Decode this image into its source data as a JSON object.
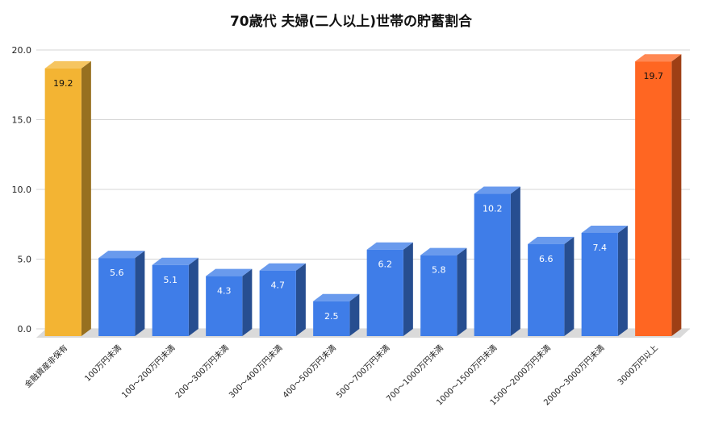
{
  "chart_data": {
    "type": "bar",
    "title": "70歳代 夫婦(二人以上)世帯の貯蓄割合",
    "xlabel": "",
    "ylabel": "",
    "ylim": [
      0,
      20
    ],
    "yticks": [
      "0.0",
      "5.0",
      "10.0",
      "15.0",
      "20.0"
    ],
    "grid": true,
    "legend": "none",
    "style": "3d",
    "categories": [
      "金融資産非保有",
      "100万円未満",
      "100〜200万円未満",
      "200〜300万円未満",
      "300〜400万円未満",
      "400〜500万円未満",
      "500〜700万円未満",
      "700〜1000万円未満",
      "1000〜1500万円未満",
      "1500〜2000万円未満",
      "2000〜3000万円未満",
      "3000万円以上"
    ],
    "values": [
      19.2,
      5.6,
      5.1,
      4.3,
      4.7,
      2.5,
      6.2,
      5.8,
      10.2,
      6.6,
      7.4,
      19.7
    ],
    "data_labels": [
      "19.2",
      "5.6",
      "5.1",
      "4.3",
      "4.7",
      "2.5",
      "6.2",
      "5.8",
      "10.2",
      "6.6",
      "7.4",
      "19.7"
    ],
    "bar_colors": [
      "#F3B433",
      "#3F7DE8",
      "#3F7DE8",
      "#3F7DE8",
      "#3F7DE8",
      "#3F7DE8",
      "#3F7DE8",
      "#3F7DE8",
      "#3F7DE8",
      "#3F7DE8",
      "#3F7DE8",
      "#FF6622"
    ],
    "label_colors": [
      "#111111",
      "#ffffff",
      "#ffffff",
      "#ffffff",
      "#ffffff",
      "#ffffff",
      "#ffffff",
      "#ffffff",
      "#ffffff",
      "#ffffff",
      "#ffffff",
      "#111111"
    ]
  }
}
